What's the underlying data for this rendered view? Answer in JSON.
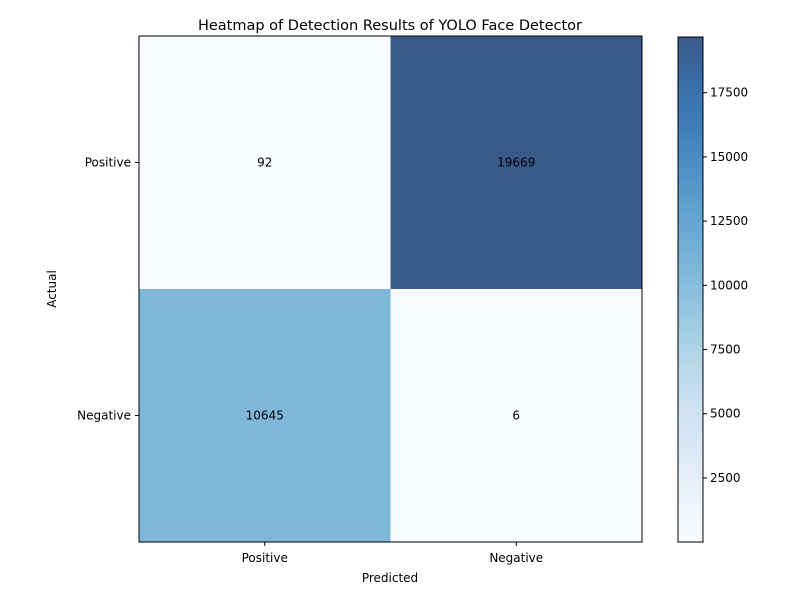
{
  "chart_data": {
    "type": "heatmap",
    "title": "Heatmap of Detection Results of YOLO Face Detector",
    "xlabel": "Predicted",
    "ylabel": "Actual",
    "x_categories": [
      "Positive",
      "Negative"
    ],
    "y_categories": [
      "Positive",
      "Negative"
    ],
    "values": [
      [
        92,
        19669
      ],
      [
        10645,
        6
      ]
    ],
    "colorbar": {
      "min": 6,
      "max": 19669,
      "ticks": [
        2500,
        5000,
        7500,
        10000,
        12500,
        15000,
        17500
      ],
      "tick_labels": [
        "2500",
        "5000",
        "7500",
        "10000",
        "12500",
        "15000",
        "17500"
      ],
      "colormap": "Blues"
    },
    "colors": {
      "low": "#f7fbff",
      "high": "#08306b"
    },
    "opacity": 0.8
  }
}
